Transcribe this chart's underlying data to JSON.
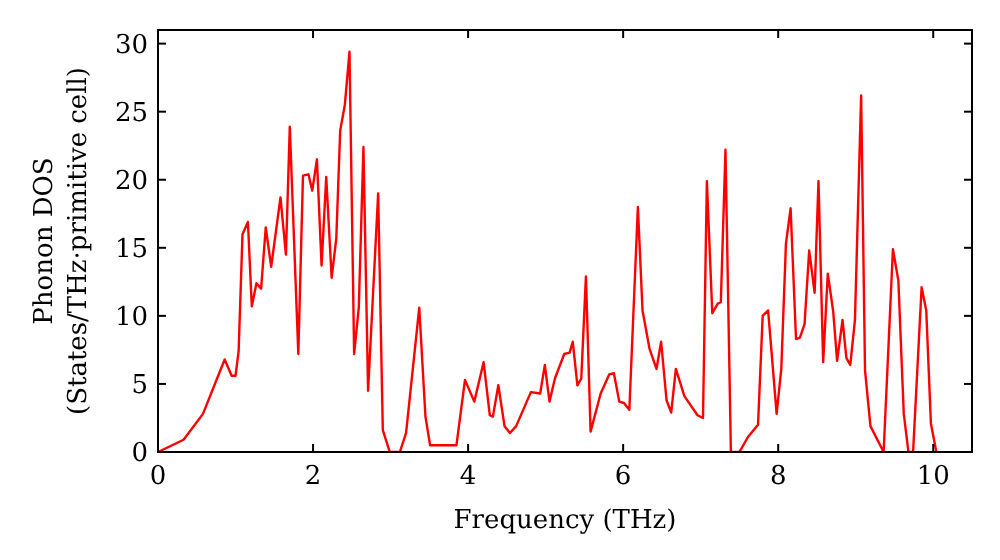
{
  "chart_data": {
    "type": "line",
    "xlabel": "Frequency (THz)",
    "ylabel": "Phonon DOS\n(States/THz·primitive cell)",
    "xlim": [
      0,
      10.5
    ],
    "ylim": [
      0,
      31
    ],
    "xticks": [
      0,
      2,
      4,
      6,
      8,
      10
    ],
    "yticks": [
      0,
      5,
      10,
      15,
      20,
      25,
      30
    ],
    "grid": false,
    "marker": "none",
    "line_style": "solid",
    "series": [
      {
        "color": "#ff0000",
        "x": [
          0,
          0.33,
          0.58,
          0.86,
          0.95,
          1.0,
          1.04,
          1.09,
          1.16,
          1.21,
          1.27,
          1.33,
          1.39,
          1.46,
          1.58,
          1.65,
          1.7,
          1.81,
          1.87,
          1.94,
          1.99,
          2.05,
          2.11,
          2.17,
          2.24,
          2.3,
          2.35,
          2.41,
          2.47,
          2.53,
          2.59,
          2.65,
          2.71,
          2.84,
          2.9,
          2.99,
          3.12,
          3.2,
          3.37,
          3.45,
          3.51,
          3.85,
          3.96,
          4.08,
          4.2,
          4.28,
          4.32,
          4.39,
          4.47,
          4.54,
          4.62,
          4.81,
          4.93,
          4.99,
          5.05,
          5.12,
          5.24,
          5.31,
          5.35,
          5.41,
          5.46,
          5.52,
          5.58,
          5.71,
          5.82,
          5.88,
          5.95,
          6.01,
          6.08,
          6.19,
          6.25,
          6.34,
          6.43,
          6.49,
          6.56,
          6.62,
          6.68,
          6.79,
          6.96,
          7.03,
          7.08,
          7.15,
          7.22,
          7.26,
          7.32,
          7.39,
          7.5,
          7.61,
          7.74,
          7.8,
          7.87,
          7.98,
          8.04,
          8.1,
          8.16,
          8.23,
          8.28,
          8.34,
          8.4,
          8.47,
          8.52,
          8.58,
          8.64,
          8.71,
          8.76,
          8.83,
          8.88,
          8.93,
          8.99,
          9.07,
          9.12,
          9.19,
          9.36,
          9.48,
          9.55,
          9.62,
          9.68,
          9.74,
          9.85,
          9.91,
          9.97,
          10.04
        ],
        "values": [
          0,
          0.9,
          2.8,
          6.8,
          5.6,
          5.6,
          7.4,
          16,
          16.9,
          10.7,
          12.4,
          12,
          16.5,
          13.6,
          18.7,
          14.5,
          23.9,
          7.2,
          20.3,
          20.4,
          19.2,
          21.5,
          13.7,
          20.2,
          12.8,
          15.7,
          23.6,
          25.5,
          29.4,
          7.2,
          10.6,
          22.4,
          4.5,
          19,
          1.6,
          0,
          0,
          1.4,
          10.6,
          2.6,
          0.5,
          0.5,
          5.3,
          3.7,
          6.6,
          2.7,
          2.6,
          4.9,
          1.9,
          1.4,
          1.9,
          4.4,
          4.3,
          6.4,
          3.7,
          5.4,
          7.2,
          7.3,
          8.1,
          4.9,
          5.4,
          12.9,
          1.5,
          4.3,
          5.7,
          5.8,
          3.7,
          3.6,
          3.1,
          18,
          10.4,
          7.6,
          6.1,
          8.1,
          3.8,
          2.9,
          6.1,
          4.1,
          2.7,
          2.5,
          19.9,
          10.2,
          10.9,
          11,
          22.2,
          0,
          0,
          1.1,
          2,
          10,
          10.4,
          2.8,
          6.1,
          15.3,
          17.9,
          8.3,
          8.4,
          9.4,
          14.8,
          11.7,
          19.9,
          6.6,
          13.1,
          10.3,
          6.7,
          9.7,
          6.9,
          6.4,
          9.7,
          26.2,
          6,
          1.9,
          0,
          14.9,
          12.6,
          2.8,
          0,
          0,
          12.1,
          10.4,
          2.1,
          0
        ]
      }
    ]
  }
}
